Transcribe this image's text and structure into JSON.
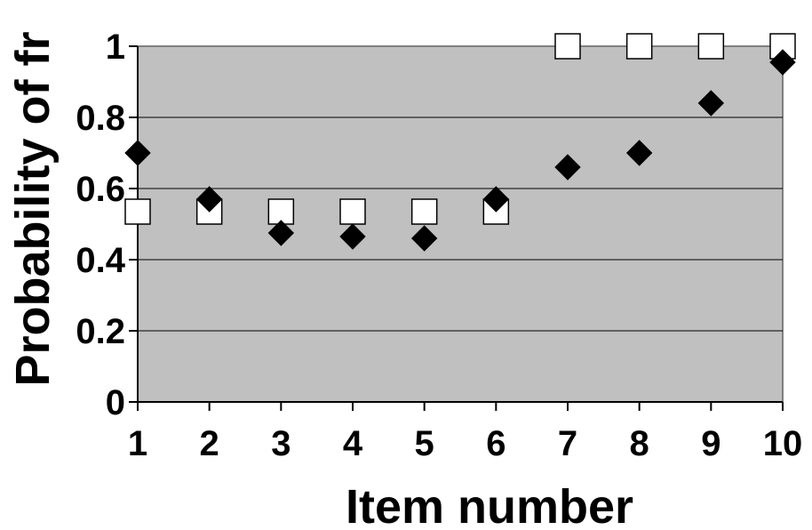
{
  "chart_data": {
    "type": "scatter",
    "title": "",
    "xlabel": "Item number",
    "ylabel": "Probability of fr",
    "x": [
      1,
      2,
      3,
      4,
      5,
      6,
      7,
      8,
      9,
      10
    ],
    "xticks": [
      "1",
      "2",
      "3",
      "4",
      "5",
      "6",
      "7",
      "8",
      "9",
      "10"
    ],
    "yticks": [
      "0",
      "0.2",
      "0.4",
      "0.6",
      "0.8",
      "1"
    ],
    "xlim": [
      1,
      10
    ],
    "ylim": [
      0,
      1
    ],
    "grid": true,
    "legend": false,
    "plot_background": "#c0c0c0",
    "series": [
      {
        "marker": "diamond",
        "color": "#000000",
        "values": [
          0.7,
          0.57,
          0.475,
          0.465,
          0.46,
          0.57,
          0.66,
          0.7,
          0.84,
          0.955
        ]
      },
      {
        "marker": "square",
        "color": "#ffffff",
        "values": [
          0.535,
          0.535,
          0.535,
          0.535,
          0.535,
          0.535,
          1.0,
          1.0,
          1.0,
          1.0
        ]
      }
    ]
  }
}
